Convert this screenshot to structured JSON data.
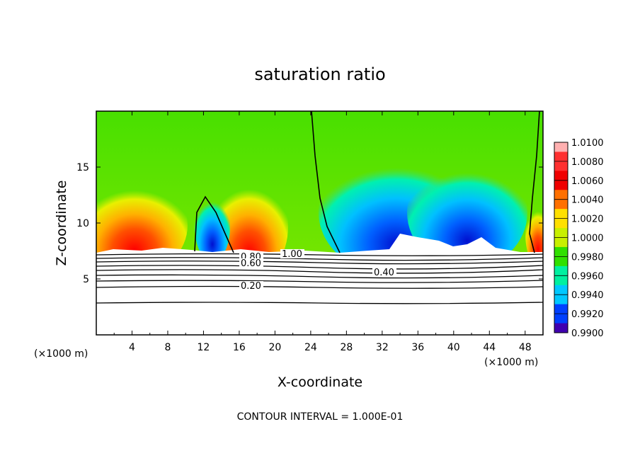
{
  "chart_data": {
    "type": "heatmap",
    "title": "saturation ratio",
    "xlabel": "X-coordinate",
    "ylabel": "Z-coordinate",
    "x_unit": "(×1000 m)",
    "z_unit": "(×1000 m)",
    "xlim": [
      0,
      50
    ],
    "ylim": [
      0,
      20
    ],
    "x_ticks": [
      4,
      8,
      12,
      16,
      20,
      24,
      28,
      32,
      36,
      40,
      44,
      48
    ],
    "y_ticks": [
      5,
      10,
      15
    ],
    "colorbar": {
      "labels": [
        "1.0100",
        "1.0080",
        "1.0060",
        "1.0040",
        "1.0020",
        "1.0000",
        "0.9980",
        "0.9960",
        "0.9940",
        "0.9920",
        "0.9900"
      ],
      "colors": [
        "#ffb0b0",
        "#ff3030",
        "#f00000",
        "#ff7000",
        "#ffe000",
        "#c8f000",
        "#30e000",
        "#00f0a0",
        "#00c8ff",
        "#0040ff",
        "#4000b0"
      ]
    },
    "contour_labels": [
      "0.80",
      "1.00",
      "0.60",
      "0.40",
      "0.20"
    ],
    "contour_levels": [
      0.2,
      0.3,
      0.4,
      0.5,
      0.6,
      0.7,
      0.8,
      0.9,
      1.0
    ],
    "contour_interval_note": "CONTOUR INTERVAL = 1.000E-01"
  }
}
